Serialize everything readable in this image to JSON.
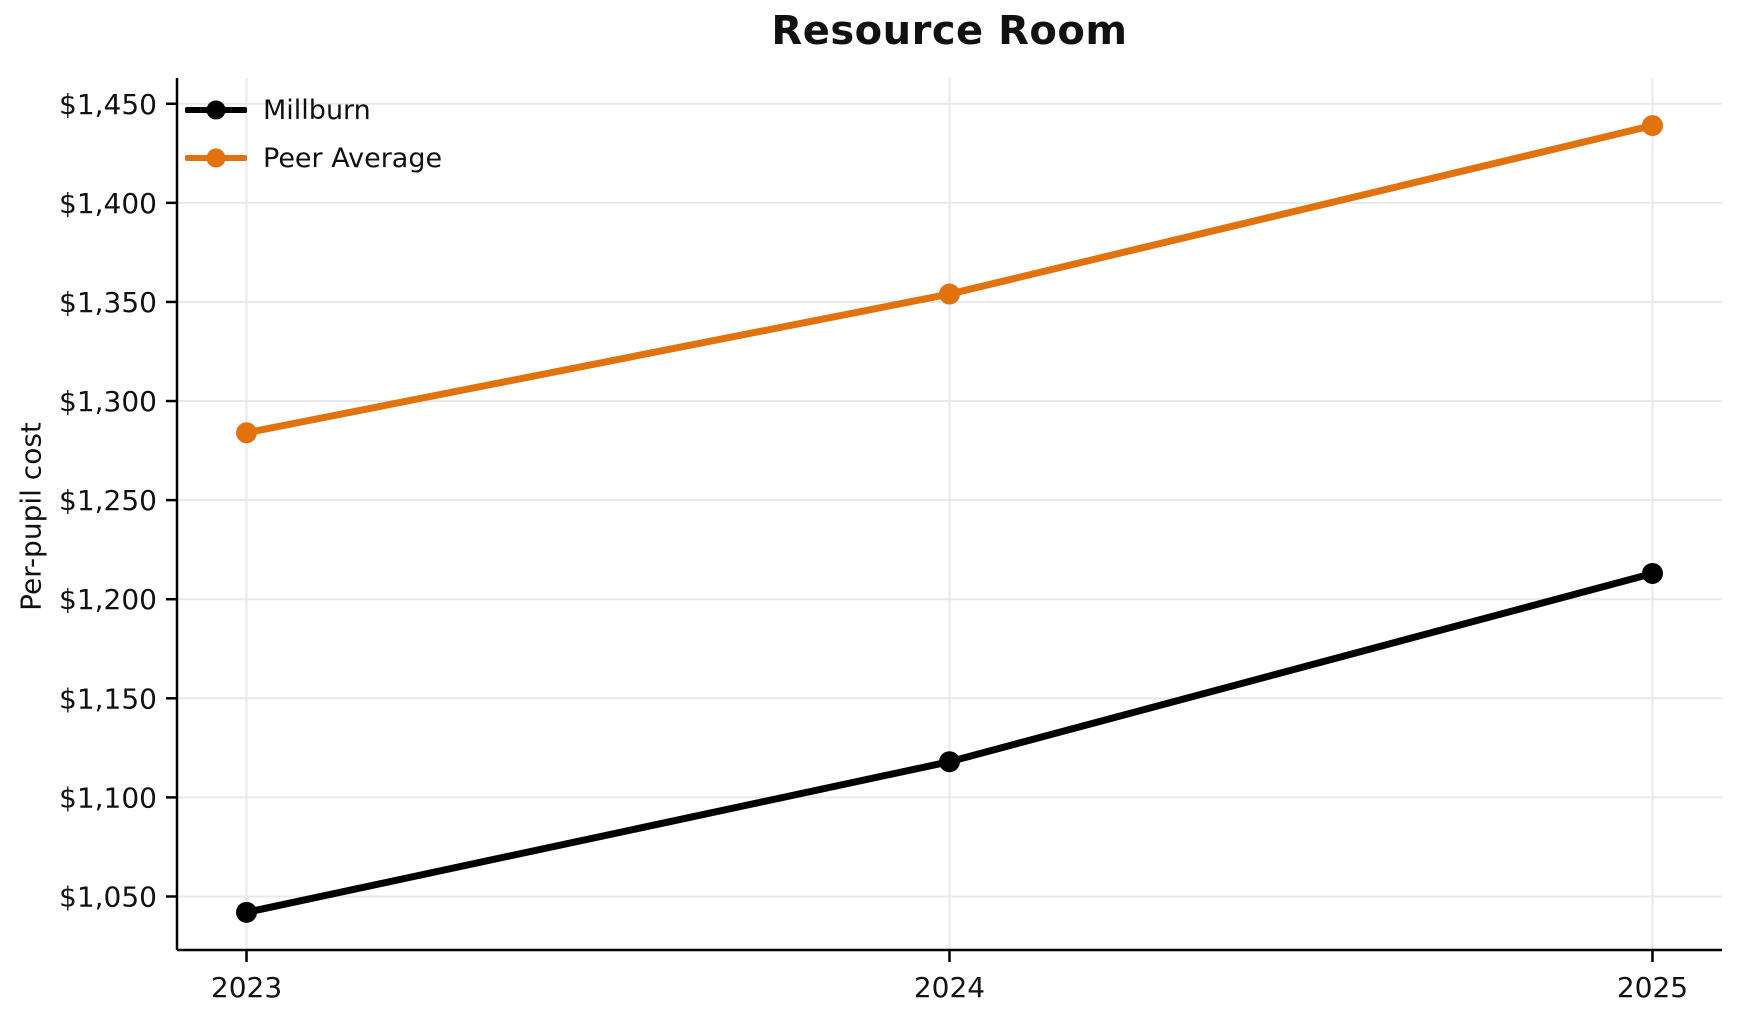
{
  "chart": {
    "title": "Resource Room",
    "ylabel": "Per-pupil cost"
  },
  "chart_data": {
    "type": "line",
    "title": "Resource Room",
    "xlabel": "",
    "ylabel": "Per-pupil cost",
    "x": [
      2023,
      2024,
      2025
    ],
    "x_tick_labels": [
      "2023",
      "2024",
      "2025"
    ],
    "series": [
      {
        "name": "Millburn",
        "color": "#000000",
        "values": [
          1042,
          1118,
          1213
        ]
      },
      {
        "name": "Peer Average",
        "color": "#E2720E",
        "values": [
          1284,
          1354,
          1439
        ]
      }
    ],
    "ylim": [
      1023,
      1463
    ],
    "yticks": [
      1050,
      1100,
      1150,
      1200,
      1250,
      1300,
      1350,
      1400,
      1450
    ],
    "y_tick_labels": [
      "$1,050",
      "$1,100",
      "$1,150",
      "$1,200",
      "$1,250",
      "$1,300",
      "$1,350",
      "$1,400",
      "$1,450"
    ],
    "grid": true,
    "grid_color": "#E9E9E9",
    "axis_color": "#000000",
    "text_color": "#111111",
    "legend_position": "upper-left",
    "marker": "circle"
  }
}
